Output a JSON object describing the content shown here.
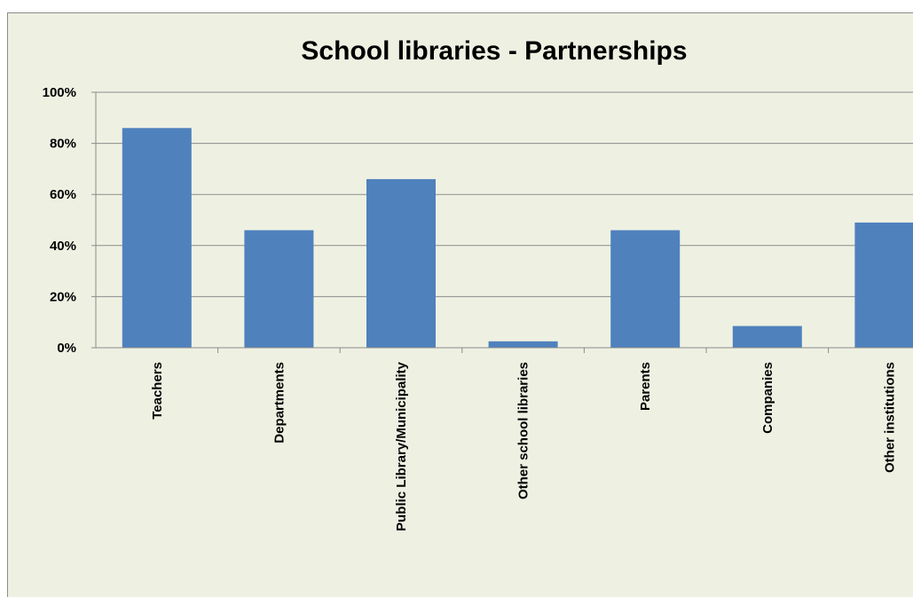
{
  "chart_data": {
    "type": "bar",
    "title": "School libraries - Partnerships",
    "xlabel": "",
    "ylabel": "",
    "ylim": [
      0,
      100
    ],
    "yticks": [
      "0%",
      "20%",
      "40%",
      "60%",
      "80%",
      "100%"
    ],
    "categories": [
      "Teachers",
      "Departments",
      "Public Library/Municipality",
      "Other school libraries",
      "Parents",
      "Companies",
      "Other institutions"
    ],
    "values": [
      86,
      46,
      66,
      2.5,
      46,
      8.5,
      49
    ],
    "grid": true,
    "bar_color": "#4f81bd",
    "background_color": "#eef1e2"
  }
}
